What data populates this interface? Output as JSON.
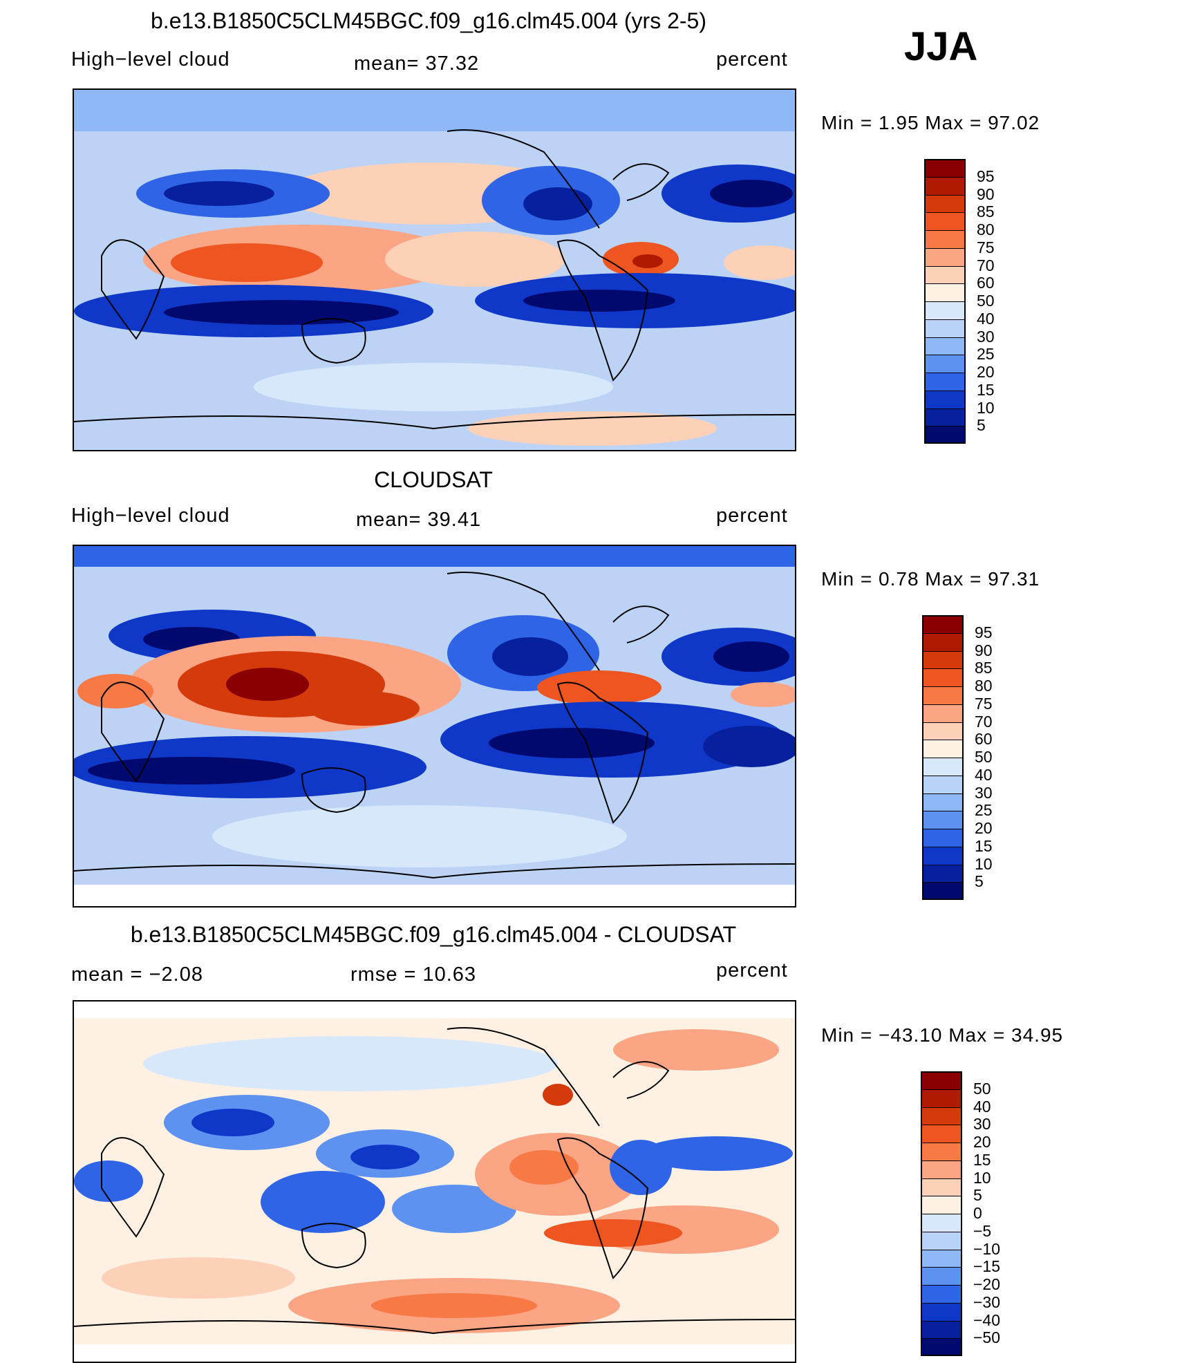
{
  "season": "JJA",
  "panels": [
    {
      "title": "b.e13.B1850C5CLM45BGC.f09_g16.clm45.004 (yrs 2-5)",
      "left_label": "High−level cloud",
      "mid_label": "mean=   37.32",
      "right_label": "percent",
      "minmax": "Min  =     1.95  Max  =    97.02",
      "colorbar": {
        "labels": [
          "95",
          "90",
          "85",
          "80",
          "75",
          "70",
          "60",
          "50",
          "40",
          "30",
          "25",
          "20",
          "15",
          "10",
          "5"
        ],
        "colors": [
          "#8a0000",
          "#b01a00",
          "#d43a0a",
          "#ee5520",
          "#f77a46",
          "#fba585",
          "#fdd0b8",
          "#fff0e4",
          "#d8e8fb",
          "#b8d2f8",
          "#8fb8f6",
          "#5e92f0",
          "#2f64e6",
          "#1038c8",
          "#06209e",
          "#000a6e"
        ]
      }
    },
    {
      "title": "CLOUDSAT",
      "left_label": "High−level cloud",
      "mid_label": "mean=   39.41",
      "right_label": "percent",
      "minmax": "Min  =     0.78  Max  =    97.31",
      "colorbar": {
        "labels": [
          "95",
          "90",
          "85",
          "80",
          "75",
          "70",
          "60",
          "50",
          "40",
          "30",
          "25",
          "20",
          "15",
          "10",
          "5"
        ],
        "colors": [
          "#8a0000",
          "#b01a00",
          "#d43a0a",
          "#ee5520",
          "#f77a46",
          "#fba585",
          "#fdd0b8",
          "#fff0e4",
          "#d8e8fb",
          "#b8d2f8",
          "#8fb8f6",
          "#5e92f0",
          "#2f64e6",
          "#1038c8",
          "#06209e",
          "#000a6e"
        ]
      }
    },
    {
      "title": "b.e13.B1850C5CLM45BGC.f09_g16.clm45.004 - CLOUDSAT",
      "left_label": "mean  =     −2.08",
      "mid_label": "rmse  =     10.63",
      "right_label": "percent",
      "minmax": "Min  = −43.10  Max  =    34.95",
      "colorbar": {
        "labels": [
          "50",
          "40",
          "30",
          "20",
          "15",
          "10",
          "5",
          "0",
          "−5",
          "−10",
          "−15",
          "−20",
          "−30",
          "−40",
          "−50"
        ],
        "colors": [
          "#8a0000",
          "#b01a00",
          "#d43a0a",
          "#ee5520",
          "#f77a46",
          "#fba585",
          "#fdd0b8",
          "#fff0e4",
          "#d8e8fb",
          "#b8d2f8",
          "#8fb8f6",
          "#5e92f0",
          "#2f64e6",
          "#1038c8",
          "#06209e",
          "#000a6e"
        ]
      }
    }
  ]
}
